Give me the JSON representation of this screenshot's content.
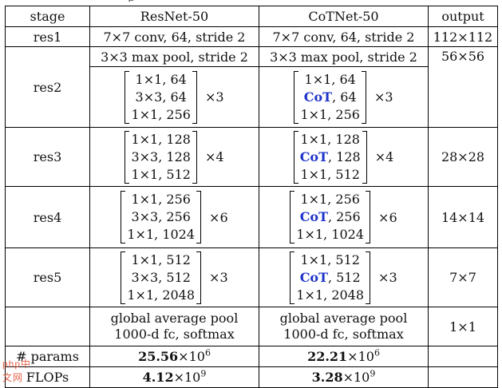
{
  "caption_fragment": "p",
  "headers": {
    "stage": "stage",
    "resnet": "ResNet-50",
    "cotnet": "CoTNet-50",
    "output": "output"
  },
  "rows": {
    "res1": {
      "stage": "res1",
      "resnet": "7×7 conv, 64, stride 2",
      "cotnet": "7×7 conv, 64, stride 2",
      "output": "112×112"
    },
    "res2": {
      "stage": "res2",
      "resnet_pool": "3×3 max pool, stride 2",
      "cotnet_pool": "3×3 max pool, stride 2",
      "output": "56×56",
      "resnet_block": [
        "1×1, 64",
        "3×3, 64",
        "1×1, 256"
      ],
      "cotnet_block": {
        "first": "1×1, 64",
        "cot_label": "CoT",
        "cot_rest": ", 64",
        "last": "1×1, 256"
      },
      "repeat": "×3"
    },
    "res3": {
      "stage": "res3",
      "output": "28×28",
      "resnet_block": [
        "1×1, 128",
        "3×3, 128",
        "1×1, 512"
      ],
      "cotnet_block": {
        "first": "1×1, 128",
        "cot_label": "CoT",
        "cot_rest": ", 128",
        "last": "1×1, 512"
      },
      "repeat": "×4"
    },
    "res4": {
      "stage": "res4",
      "output": "14×14",
      "resnet_block": [
        "1×1, 256",
        "3×3, 256",
        "1×1, 1024"
      ],
      "cotnet_block": {
        "first": "1×1, 256",
        "cot_label": "CoT",
        "cot_rest": ", 256",
        "last": "1×1, 1024"
      },
      "repeat": "×6"
    },
    "res5": {
      "stage": "res5",
      "output": "7×7",
      "resnet_block": [
        "1×1, 512",
        "3×3, 512",
        "1×1, 2048"
      ],
      "cotnet_block": {
        "first": "1×1, 512",
        "cot_label": "CoT",
        "cot_rest": ", 512",
        "last": "1×1, 2048"
      },
      "repeat": "×3"
    },
    "pool": {
      "resnet_line1": "global average pool",
      "resnet_line2": "1000-d fc, softmax",
      "cotnet_line1": "global average pool",
      "cotnet_line2": "1000-d fc, softmax",
      "output": "1×1"
    },
    "params": {
      "label": "# params",
      "resnet_value": "25.56",
      "resnet_unit": "×10",
      "resnet_exp": "6",
      "cotnet_value": "22.21",
      "cotnet_unit": "×10",
      "cotnet_exp": "6"
    },
    "flops": {
      "label": "FLOPs",
      "resnet_value": "4.12",
      "resnet_unit": "×10",
      "resnet_exp": "9",
      "cotnet_value": "3.28",
      "cotnet_unit": "×10",
      "cotnet_exp": "9"
    }
  },
  "watermark": "php中文网",
  "colors": {
    "cot": "#1f35c9",
    "watermark": "#e24a2c"
  }
}
